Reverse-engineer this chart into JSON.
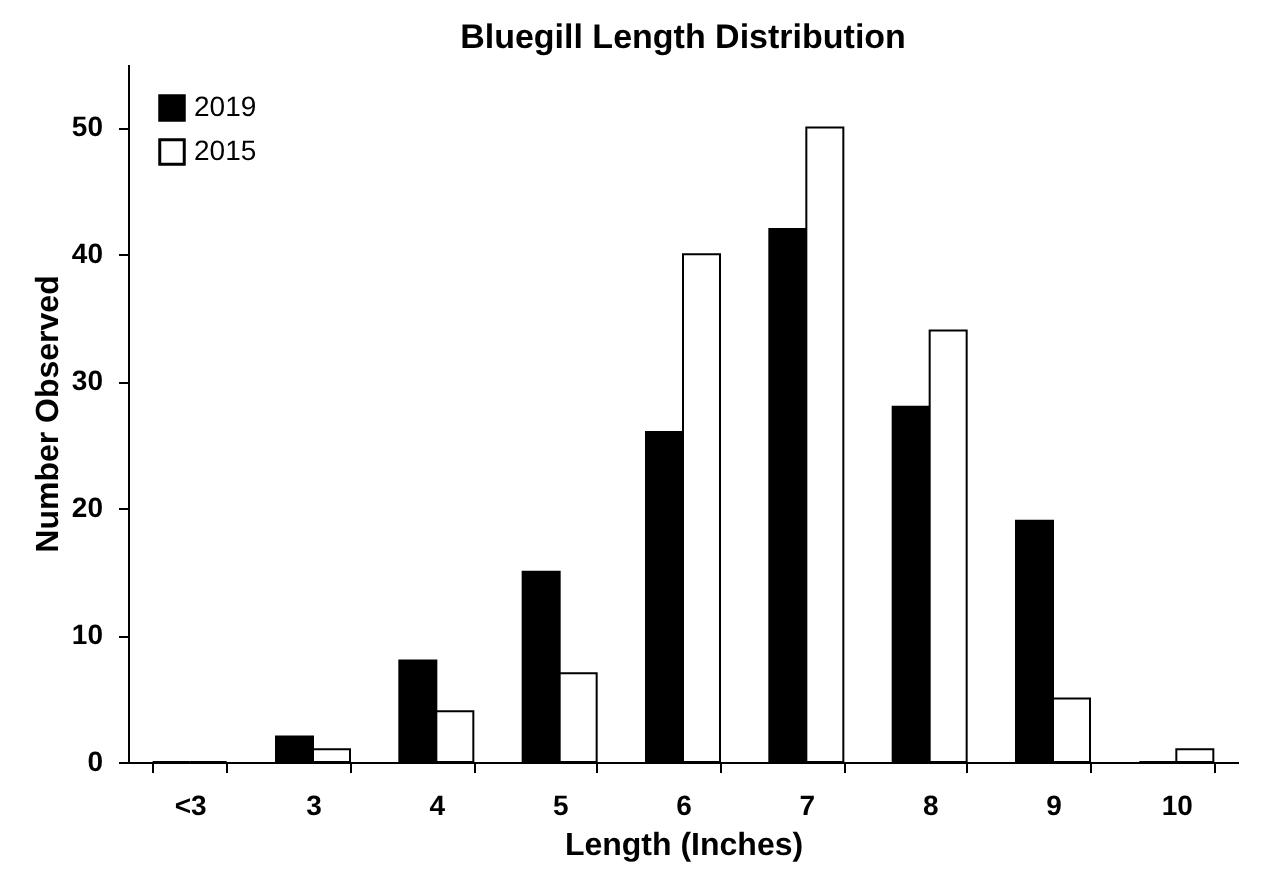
{
  "chart_data": {
    "type": "bar",
    "title": "Bluegill Length Distribution",
    "xlabel": "Length (Inches)",
    "ylabel": "Number Observed",
    "categories": [
      "<3",
      "3",
      "4",
      "5",
      "6",
      "7",
      "8",
      "9",
      "10"
    ],
    "series": [
      {
        "name": "2019",
        "color": "#000000",
        "values": [
          0,
          2,
          8,
          15,
          26,
          42,
          28,
          19,
          0
        ]
      },
      {
        "name": "2015",
        "color": "#ffffff",
        "values": [
          0,
          1,
          4,
          7,
          40,
          50,
          34,
          5,
          1
        ]
      }
    ],
    "ylim": [
      0,
      55
    ],
    "yticks": [
      0,
      10,
      20,
      30,
      40,
      50
    ],
    "grid": false,
    "legend": "top left"
  }
}
